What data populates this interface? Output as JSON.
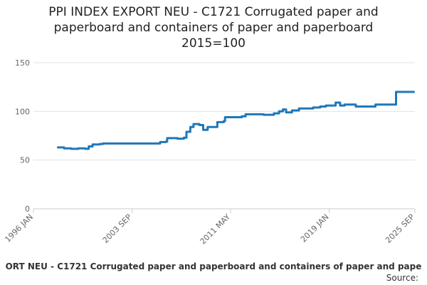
{
  "chart_data": {
    "type": "line",
    "title": [
      "PPI INDEX EXPORT NEU - C1721 Corrugated paper and",
      "paperboard and containers of paper and paperboard",
      "2015=100"
    ],
    "x": [
      1997.83,
      1998.38,
      1998.93,
      1999.49,
      2000.04,
      2000.3,
      2000.6,
      2001.15,
      2001.4,
      2005.6,
      2005.85,
      2006.3,
      2006.4,
      2007.2,
      2007.7,
      2007.9,
      2008.2,
      2008.45,
      2008.9,
      2009.2,
      2009.55,
      2010.1,
      2010.3,
      2010.8,
      2010.9,
      2011.95,
      2012.2,
      2012.5,
      2013.05,
      2013.6,
      2013.9,
      2014.7,
      2015.1,
      2015.4,
      2015.65,
      2016.1,
      2016.65,
      2017.2,
      2017.75,
      2018.3,
      2018.75,
      2019.1,
      2019.5,
      2019.85,
      2020.2,
      2020.8,
      2021.07,
      2022.2,
      2022.6,
      2024.1,
      2024.2,
      2025.65
    ],
    "values": [
      63,
      62,
      61.5,
      62,
      61.5,
      64,
      66,
      66.5,
      67,
      67,
      68.5,
      69,
      72.5,
      72,
      73,
      79,
      84,
      87,
      86,
      81,
      84,
      84,
      89,
      90,
      94,
      94,
      95,
      97,
      97,
      97,
      96.5,
      98,
      100,
      102,
      99,
      101,
      103,
      103,
      104,
      105,
      106,
      106,
      109,
      106,
      107,
      107,
      105,
      105,
      107,
      107,
      120,
      120
    ],
    "color": "#1f78b8",
    "xlim": [
      1996,
      2025.667
    ],
    "xticks": [
      {
        "value": 1996,
        "label": "1996 JAN"
      },
      {
        "value": 2003.667,
        "label": "2003 SEP"
      },
      {
        "value": 2011.333,
        "label": "2011 MAY"
      },
      {
        "value": 2019,
        "label": "2019 JAN"
      },
      {
        "value": 2025.667,
        "label": "2025 SEP"
      }
    ],
    "ylim": [
      0,
      150
    ],
    "yticks": [
      0,
      50,
      100,
      150
    ],
    "grid": true,
    "caption": "ORT NEU - C1721 Corrugated paper and paperboard and containers of paper and pape",
    "source": "Source:"
  }
}
